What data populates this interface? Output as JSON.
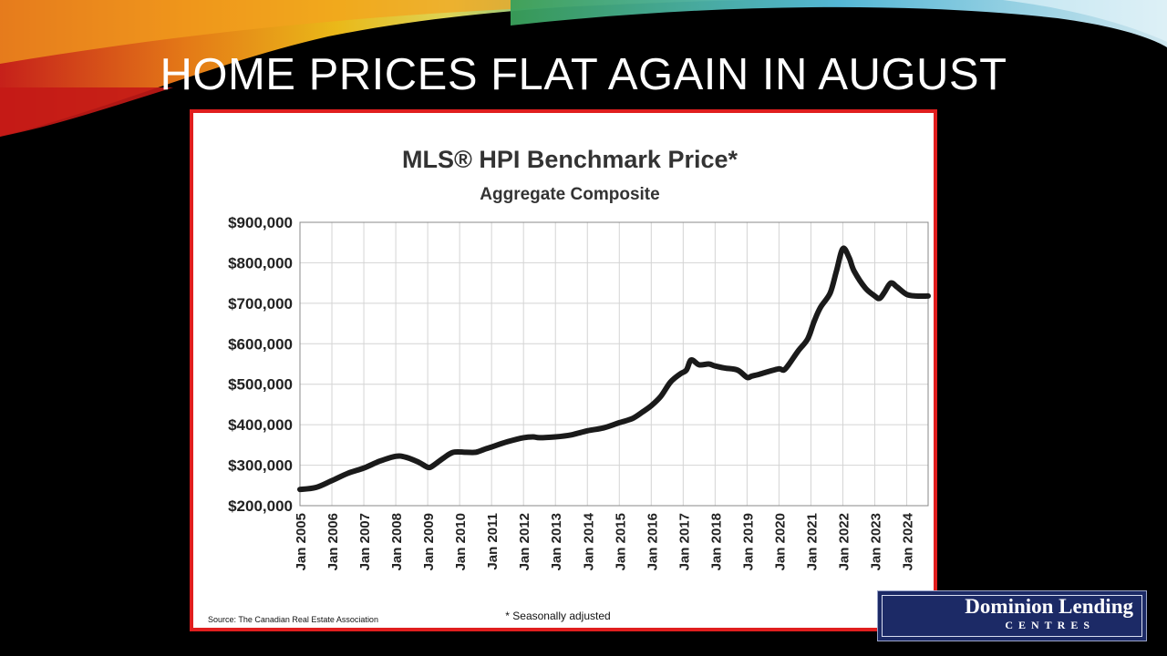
{
  "slide": {
    "title": "HOME PRICES FLAT AGAIN IN AUGUST"
  },
  "logo": {
    "line1": "Dominion Lending",
    "line2": "CENTRES"
  },
  "colors": {
    "background": "#000000",
    "frame": "#e01e1e",
    "line": "#1a1a1a",
    "grid": "#d4d4d4",
    "logo": "#1c2a66"
  },
  "chart_data": {
    "type": "line",
    "title": "MLS® HPI Benchmark Price*",
    "subtitle": "Aggregate Composite",
    "footnote": "* Seasonally adjusted",
    "source": "Source: The Canadian Real Estate Association",
    "y_ticks": [
      "$200,000",
      "$300,000",
      "$400,000",
      "$500,000",
      "$600,000",
      "$700,000",
      "$800,000",
      "$900,000"
    ],
    "x_ticks": [
      "Jan 2005",
      "Jan 2006",
      "Jan 2007",
      "Jan 2008",
      "Jan 2009",
      "Jan 2010",
      "Jan 2011",
      "Jan 2012",
      "Jan 2013",
      "Jan 2014",
      "Jan 2015",
      "Jan 2016",
      "Jan 2017",
      "Jan 2018",
      "Jan 2019",
      "Jan 2020",
      "Jan 2021",
      "Jan 2022",
      "Jan 2023",
      "Jan 2024"
    ],
    "xlim": [
      2005.0,
      2024.67
    ],
    "ylim": [
      200000,
      900000
    ],
    "grid": true,
    "series": [
      {
        "x": [
          2005.0,
          2005.5,
          2006.0,
          2006.5,
          2007.0,
          2007.5,
          2008.0,
          2008.3,
          2008.7,
          2009.0,
          2009.15,
          2009.5,
          2009.8,
          2010.2,
          2010.5,
          2010.8,
          2011.0,
          2011.5,
          2012.0,
          2012.3,
          2012.5,
          2013.0,
          2013.5,
          2014.0,
          2014.5,
          2015.0,
          2015.4,
          2015.7,
          2016.0,
          2016.3,
          2016.6,
          2016.9,
          2017.1,
          2017.25,
          2017.5,
          2017.8,
          2018.0,
          2018.3,
          2018.7,
          2019.0,
          2019.15,
          2019.4,
          2019.7,
          2020.0,
          2020.15,
          2020.3,
          2020.6,
          2020.9,
          2021.1,
          2021.3,
          2021.6,
          2021.8,
          2022.0,
          2022.2,
          2022.35,
          2022.7,
          2023.0,
          2023.15,
          2023.3,
          2023.5,
          2023.7,
          2024.0,
          2024.3,
          2024.67
        ],
        "y": [
          240000,
          245000,
          262000,
          280000,
          293000,
          310000,
          322000,
          320000,
          308000,
          295000,
          298000,
          318000,
          332000,
          332000,
          332000,
          340000,
          345000,
          358000,
          368000,
          370000,
          368000,
          370000,
          375000,
          385000,
          392000,
          405000,
          415000,
          430000,
          447000,
          470000,
          505000,
          525000,
          535000,
          560000,
          548000,
          550000,
          545000,
          540000,
          535000,
          517000,
          520000,
          525000,
          532000,
          538000,
          535000,
          548000,
          582000,
          612000,
          655000,
          690000,
          725000,
          780000,
          835000,
          812000,
          780000,
          738000,
          718000,
          712000,
          727000,
          750000,
          740000,
          722000,
          718000,
          718000
        ]
      }
    ]
  }
}
